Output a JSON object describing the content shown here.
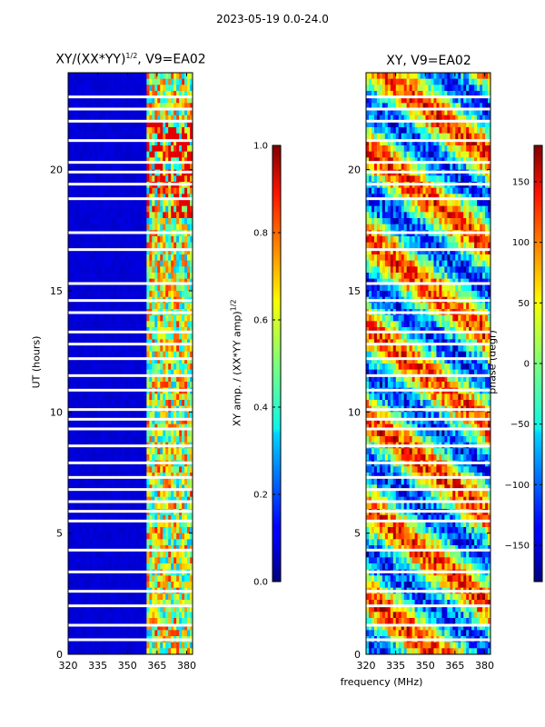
{
  "figure": {
    "suptitle": "2023-05-19 0.0-24.0",
    "xlabel_shared": "frequency (MHz)"
  },
  "chart_data": [
    {
      "type": "heatmap",
      "title": "XY/(XX*YY)",
      "title_sup": "1/2",
      "title_suffix": ", V9=EA02",
      "xlabel": "",
      "ylabel": "UT (hours)",
      "xlim": [
        320,
        383
      ],
      "ylim": [
        0,
        24
      ],
      "xticks": [
        "320",
        "335",
        "350",
        "365",
        "380"
      ],
      "yticks": [
        "0",
        "5",
        "10",
        "15",
        "20"
      ],
      "colormap": "jet",
      "colorbar": {
        "label": "XY amp. / (XX*YY amp)",
        "label_sup": "1/2",
        "range": [
          0.0,
          1.0
        ],
        "ticks": [
          "0.0",
          "0.2",
          "0.4",
          "0.6",
          "0.8",
          "1.0"
        ]
      },
      "description_bands": {
        "low_band_mhz": [
          320,
          360
        ],
        "low_band_value": 0.07,
        "high_band_mhz": [
          360,
          383
        ],
        "high_band_value_range": [
          0.3,
          0.85
        ],
        "flagged_hours": [
          0.6,
          1.2,
          2.0,
          2.6,
          3.4,
          4.3,
          5.5,
          5.9,
          6.3,
          6.8,
          7.3,
          7.9,
          8.6,
          9.3,
          9.7,
          10.1,
          10.9,
          11.5,
          12.2,
          12.8,
          13.3,
          14.1,
          14.6,
          15.3,
          16.7,
          17.4,
          18.8,
          19.4,
          19.9,
          20.3,
          21.2,
          22.0,
          22.5,
          23.0
        ]
      }
    },
    {
      "type": "heatmap",
      "title": "XY, V9=EA02",
      "xlabel": "frequency (MHz)",
      "ylabel": "",
      "xlim": [
        320,
        383
      ],
      "ylim": [
        0,
        24
      ],
      "xticks": [
        "320",
        "335",
        "350",
        "365",
        "380"
      ],
      "yticks": [
        "0",
        "5",
        "10",
        "15",
        "20"
      ],
      "colormap": "jet",
      "colorbar": {
        "label": "phase (degr)",
        "range": [
          -180,
          180
        ],
        "ticks": [
          "-150",
          "-100",
          "-50",
          "0",
          "50",
          "100",
          "150"
        ]
      },
      "description_bands": {
        "phase_range_deg": [
          -180,
          180
        ],
        "flagged_hours": [
          0.6,
          1.2,
          2.0,
          2.6,
          3.4,
          4.3,
          5.5,
          5.9,
          6.3,
          6.8,
          7.3,
          7.9,
          8.6,
          9.3,
          9.7,
          10.1,
          10.9,
          11.5,
          12.2,
          12.8,
          13.3,
          14.1,
          14.6,
          15.3,
          16.7,
          17.4,
          18.8,
          19.4,
          19.9,
          20.3,
          21.2,
          22.0,
          22.5,
          23.0
        ]
      }
    }
  ]
}
